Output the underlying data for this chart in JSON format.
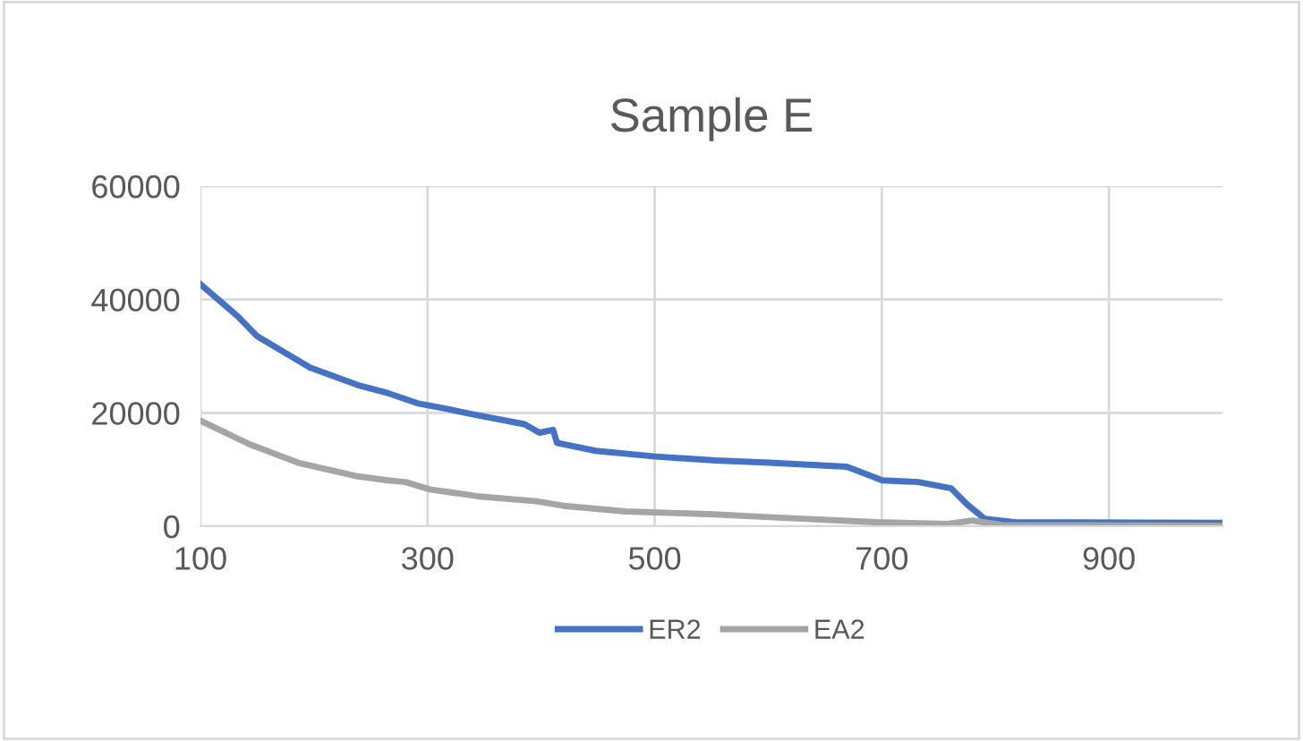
{
  "chart_data": {
    "type": "line",
    "title": "Sample E",
    "x": [
      100,
      133.6,
      150,
      196.5,
      238.6,
      264.9,
      291,
      317,
      343.4,
      385.4,
      398.5,
      410.5,
      414,
      448,
      500.6,
      553.5,
      600.8,
      669,
      679.5,
      700.5,
      732,
      761,
      774.8,
      790.6,
      816.8,
      998
    ],
    "series": [
      {
        "name": "ER2",
        "color": "#4472c4",
        "values": [
          42700,
          36900,
          33500,
          28000,
          24900,
          23500,
          21700,
          20700,
          19600,
          18000,
          16500,
          17000,
          14700,
          13300,
          12300,
          11600,
          11200,
          10500,
          9700,
          8100,
          7800,
          6700,
          3900,
          1300,
          700,
          600
        ]
      },
      {
        "name": "EA2",
        "color": "#a5a5a5",
        "x": [
          100,
          144,
          186,
          238.6,
          265,
          280.5,
          302,
          343.4,
          396,
          419.7,
          474.8,
          552.4,
          600.8,
          695,
          758,
          779.5,
          806,
          998
        ],
        "values": [
          18600,
          14400,
          11200,
          8800,
          8100,
          7800,
          6500,
          5300,
          4400,
          3600,
          2600,
          2100,
          1600,
          700,
          400,
          1000,
          200,
          100
        ]
      }
    ],
    "xlim": [
      100,
      1000
    ],
    "xticks": [
      100,
      300,
      500,
      700,
      900
    ],
    "ylim": [
      0,
      60000
    ],
    "yticks": [
      0,
      20000,
      40000,
      60000
    ],
    "grid": true,
    "legend": "bottom",
    "marker": "none",
    "line_style": "solid"
  }
}
